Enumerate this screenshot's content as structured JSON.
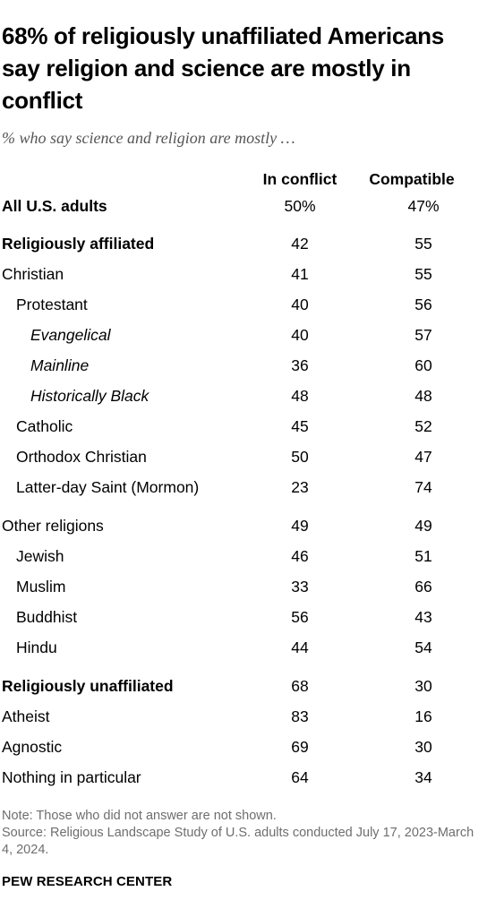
{
  "title": "68% of religiously unaffiliated Americans say religion and science are mostly in conflict",
  "subtitle": "% who say science and religion are mostly …",
  "note": "Note: Those who did not answer are not shown.",
  "source": "Source: Religious Landscape Study of U.S. adults conducted July 17, 2023-March 4, 2024.",
  "brand": "PEW RESEARCH CENTER",
  "chart_data": {
    "type": "table",
    "columns": [
      "In conflict",
      "Compatible"
    ],
    "rows": [
      {
        "label": "All U.S. adults",
        "in_conflict": "50%",
        "compatible": "47%",
        "style": "bold",
        "indent": 0
      },
      {
        "label": "Religiously affiliated",
        "in_conflict": "42",
        "compatible": "55",
        "style": "bold",
        "indent": 0
      },
      {
        "label": "Christian",
        "in_conflict": "41",
        "compatible": "55",
        "style": "normal",
        "indent": 0
      },
      {
        "label": "Protestant",
        "in_conflict": "40",
        "compatible": "56",
        "style": "normal",
        "indent": 1
      },
      {
        "label": "Evangelical",
        "in_conflict": "40",
        "compatible": "57",
        "style": "italic",
        "indent": 2
      },
      {
        "label": "Mainline",
        "in_conflict": "36",
        "compatible": "60",
        "style": "italic",
        "indent": 2
      },
      {
        "label": "Historically Black",
        "in_conflict": "48",
        "compatible": "48",
        "style": "italic",
        "indent": 2
      },
      {
        "label": "Catholic",
        "in_conflict": "45",
        "compatible": "52",
        "style": "normal",
        "indent": 1
      },
      {
        "label": "Orthodox Christian",
        "in_conflict": "50",
        "compatible": "47",
        "style": "normal",
        "indent": 1
      },
      {
        "label": "Latter-day Saint (Mormon)",
        "in_conflict": "23",
        "compatible": "74",
        "style": "normal",
        "indent": 1
      },
      {
        "label": "Other religions",
        "in_conflict": "49",
        "compatible": "49",
        "style": "normal",
        "indent": 0
      },
      {
        "label": "Jewish",
        "in_conflict": "46",
        "compatible": "51",
        "style": "normal",
        "indent": 1
      },
      {
        "label": "Muslim",
        "in_conflict": "33",
        "compatible": "66",
        "style": "normal",
        "indent": 1
      },
      {
        "label": "Buddhist",
        "in_conflict": "56",
        "compatible": "43",
        "style": "normal",
        "indent": 1
      },
      {
        "label": "Hindu",
        "in_conflict": "44",
        "compatible": "54",
        "style": "normal",
        "indent": 1
      },
      {
        "label": "Religiously unaffiliated",
        "in_conflict": "68",
        "compatible": "30",
        "style": "bold",
        "indent": 0
      },
      {
        "label": "Atheist",
        "in_conflict": "83",
        "compatible": "16",
        "style": "normal",
        "indent": 0
      },
      {
        "label": "Agnostic",
        "in_conflict": "69",
        "compatible": "30",
        "style": "normal",
        "indent": 0
      },
      {
        "label": "Nothing in particular",
        "in_conflict": "64",
        "compatible": "34",
        "style": "normal",
        "indent": 0
      }
    ]
  }
}
